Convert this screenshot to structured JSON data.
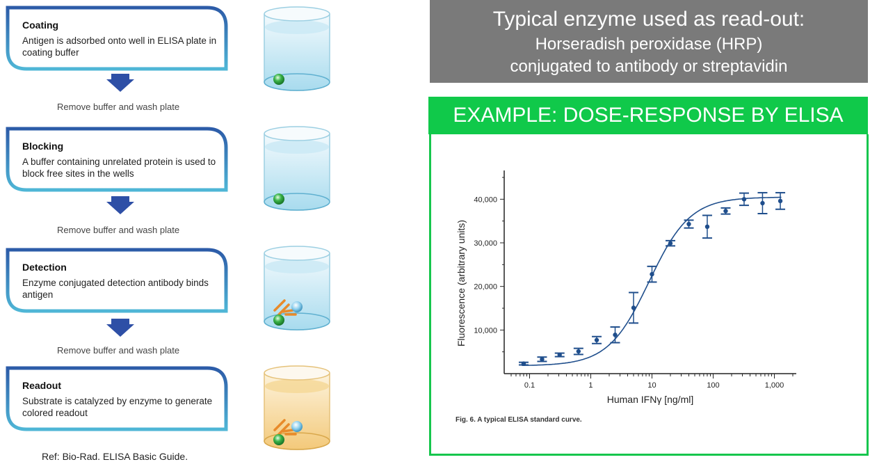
{
  "steps": [
    {
      "title": "Coating",
      "desc": "Antigen is adsorbed onto well in ELISA plate in coating buffer"
    },
    {
      "title": "Blocking",
      "desc": "A buffer containing unrelated protein is used to block free sites in the wells"
    },
    {
      "title": "Detection",
      "desc": "Enzyme conjugated detection antibody binds antigen"
    },
    {
      "title": "Readout",
      "desc": "Substrate is catalyzed by enzyme to generate colored readout"
    }
  ],
  "wash_text": "Remove buffer and wash plate",
  "reference": "Ref: Bio-Rad. ELISA Basic Guide.",
  "header": {
    "line1": "Typical enzyme used as read-out:",
    "line2": "Horseradish peroxidase (HRP)",
    "line3": "conjugated to antibody or streptavidin"
  },
  "banner": "EXAMPLE: DOSE-RESPONSE BY ELISA",
  "colors": {
    "grey_box": "#7a7a7a",
    "green": "#10c94a",
    "step_border": "#2c5ba8",
    "curve": "#1f4e8c",
    "antigen": "#3cb54a",
    "antibody": "#e88a2a",
    "enzyme": "#8fd0ee"
  },
  "caption": "Fig. 6. A typical ELISA standard curve.",
  "chart_data": {
    "type": "scatter",
    "xlabel": "Human IFNγ [ng/ml]",
    "ylabel": "Fluorescence (arbitrary units)",
    "x_scale": "log",
    "xlim": [
      0.05,
      2000
    ],
    "ylim": [
      0,
      45000
    ],
    "x_ticks": [
      "0.1",
      "1",
      "10",
      "100",
      "1,000"
    ],
    "x_tick_values": [
      0.1,
      1,
      10,
      100,
      1000
    ],
    "y_ticks": [
      "10,000",
      "20,000",
      "30,000",
      "40,000"
    ],
    "y_tick_values": [
      10000,
      20000,
      30000,
      40000
    ],
    "points": [
      {
        "x": 0.08,
        "y": 2300,
        "err": 300
      },
      {
        "x": 0.16,
        "y": 3300,
        "err": 500
      },
      {
        "x": 0.31,
        "y": 4300,
        "err": 400
      },
      {
        "x": 0.63,
        "y": 5100,
        "err": 700
      },
      {
        "x": 1.25,
        "y": 7700,
        "err": 800
      },
      {
        "x": 2.5,
        "y": 8900,
        "err": 1800
      },
      {
        "x": 5,
        "y": 15100,
        "err": 3500
      },
      {
        "x": 10,
        "y": 22800,
        "err": 1800
      },
      {
        "x": 20,
        "y": 29900,
        "err": 600
      },
      {
        "x": 40,
        "y": 34300,
        "err": 900
      },
      {
        "x": 80,
        "y": 33700,
        "err": 2600
      },
      {
        "x": 160,
        "y": 37300,
        "err": 700
      },
      {
        "x": 320,
        "y": 40000,
        "err": 1400
      },
      {
        "x": 640,
        "y": 39100,
        "err": 2400
      },
      {
        "x": 1250,
        "y": 39600,
        "err": 1900
      }
    ],
    "fit": {
      "bottom": 1800,
      "top": 40500,
      "ec50": 9,
      "hill": 1.3
    }
  }
}
